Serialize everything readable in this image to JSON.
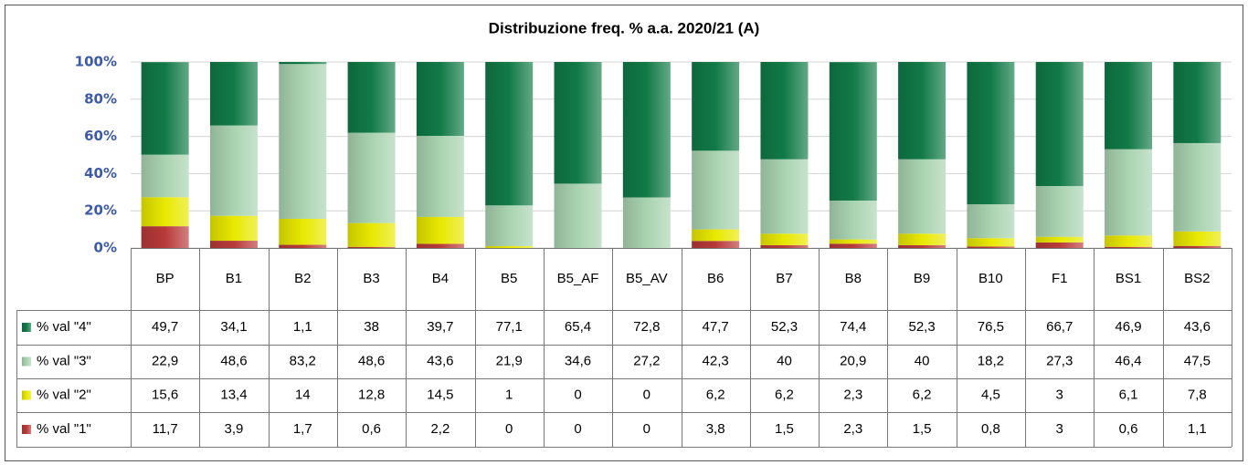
{
  "chart_data": {
    "type": "stacked_bar",
    "title": "Distribuzione freq. % a.a. 2020/21 (A)",
    "categories": [
      "BP",
      "B1",
      "B2",
      "B3",
      "B4",
      "B5",
      "B5_AF",
      "B5_AV",
      "B6",
      "B7",
      "B8",
      "B9",
      "B10",
      "F1",
      "BS1",
      "BS2"
    ],
    "series": [
      {
        "name": "% val \"4\"",
        "color": "#117a47",
        "values": [
          49.7,
          34.1,
          1.1,
          38,
          39.7,
          77.1,
          65.4,
          72.8,
          47.7,
          52.3,
          74.4,
          52.3,
          76.5,
          66.7,
          46.9,
          43.6
        ],
        "value_labels": [
          "49,7",
          "34,1",
          "1,1",
          "38",
          "39,7",
          "77,1",
          "65,4",
          "72,8",
          "47,7",
          "52,3",
          "74,4",
          "52,3",
          "76,5",
          "66,7",
          "46,9",
          "43,6"
        ]
      },
      {
        "name": "% val \"3\"",
        "color": "#a9d3b0",
        "values": [
          22.9,
          48.6,
          83.2,
          48.6,
          43.6,
          21.9,
          34.6,
          27.2,
          42.3,
          40,
          20.9,
          40,
          18.2,
          27.3,
          46.4,
          47.5
        ],
        "value_labels": [
          "22,9",
          "48,6",
          "83,2",
          "48,6",
          "43,6",
          "21,9",
          "34,6",
          "27,2",
          "42,3",
          "40",
          "20,9",
          "40",
          "18,2",
          "27,3",
          "46,4",
          "47,5"
        ]
      },
      {
        "name": "% val \"2\"",
        "color": "#e8e800",
        "values": [
          15.6,
          13.4,
          14,
          12.8,
          14.5,
          1,
          0,
          0,
          6.2,
          6.2,
          2.3,
          6.2,
          4.5,
          3,
          6.1,
          7.8
        ],
        "value_labels": [
          "15,6",
          "13,4",
          "14",
          "12,8",
          "14,5",
          "1",
          "0",
          "0",
          "6,2",
          "6,2",
          "2,3",
          "6,2",
          "4,5",
          "3",
          "6,1",
          "7,8"
        ]
      },
      {
        "name": "% val \"1\"",
        "color": "#b83a3a",
        "values": [
          11.7,
          3.9,
          1.7,
          0.6,
          2.2,
          0,
          0,
          0,
          3.8,
          1.5,
          2.3,
          1.5,
          0.8,
          3,
          0.6,
          1.1
        ],
        "value_labels": [
          "11,7",
          "3,9",
          "1,7",
          "0,6",
          "2,2",
          "0",
          "0",
          "0",
          "3,8",
          "1,5",
          "2,3",
          "1,5",
          "0,8",
          "3",
          "0,6",
          "1,1"
        ]
      }
    ],
    "ylim": [
      0,
      100
    ],
    "yticks": [
      {
        "value": 0,
        "label": "0%"
      },
      {
        "value": 20,
        "label": "20%"
      },
      {
        "value": 40,
        "label": "40%"
      },
      {
        "value": 60,
        "label": "60%"
      },
      {
        "value": 80,
        "label": "80%"
      },
      {
        "value": 100,
        "label": "100%"
      }
    ],
    "grid": true
  }
}
